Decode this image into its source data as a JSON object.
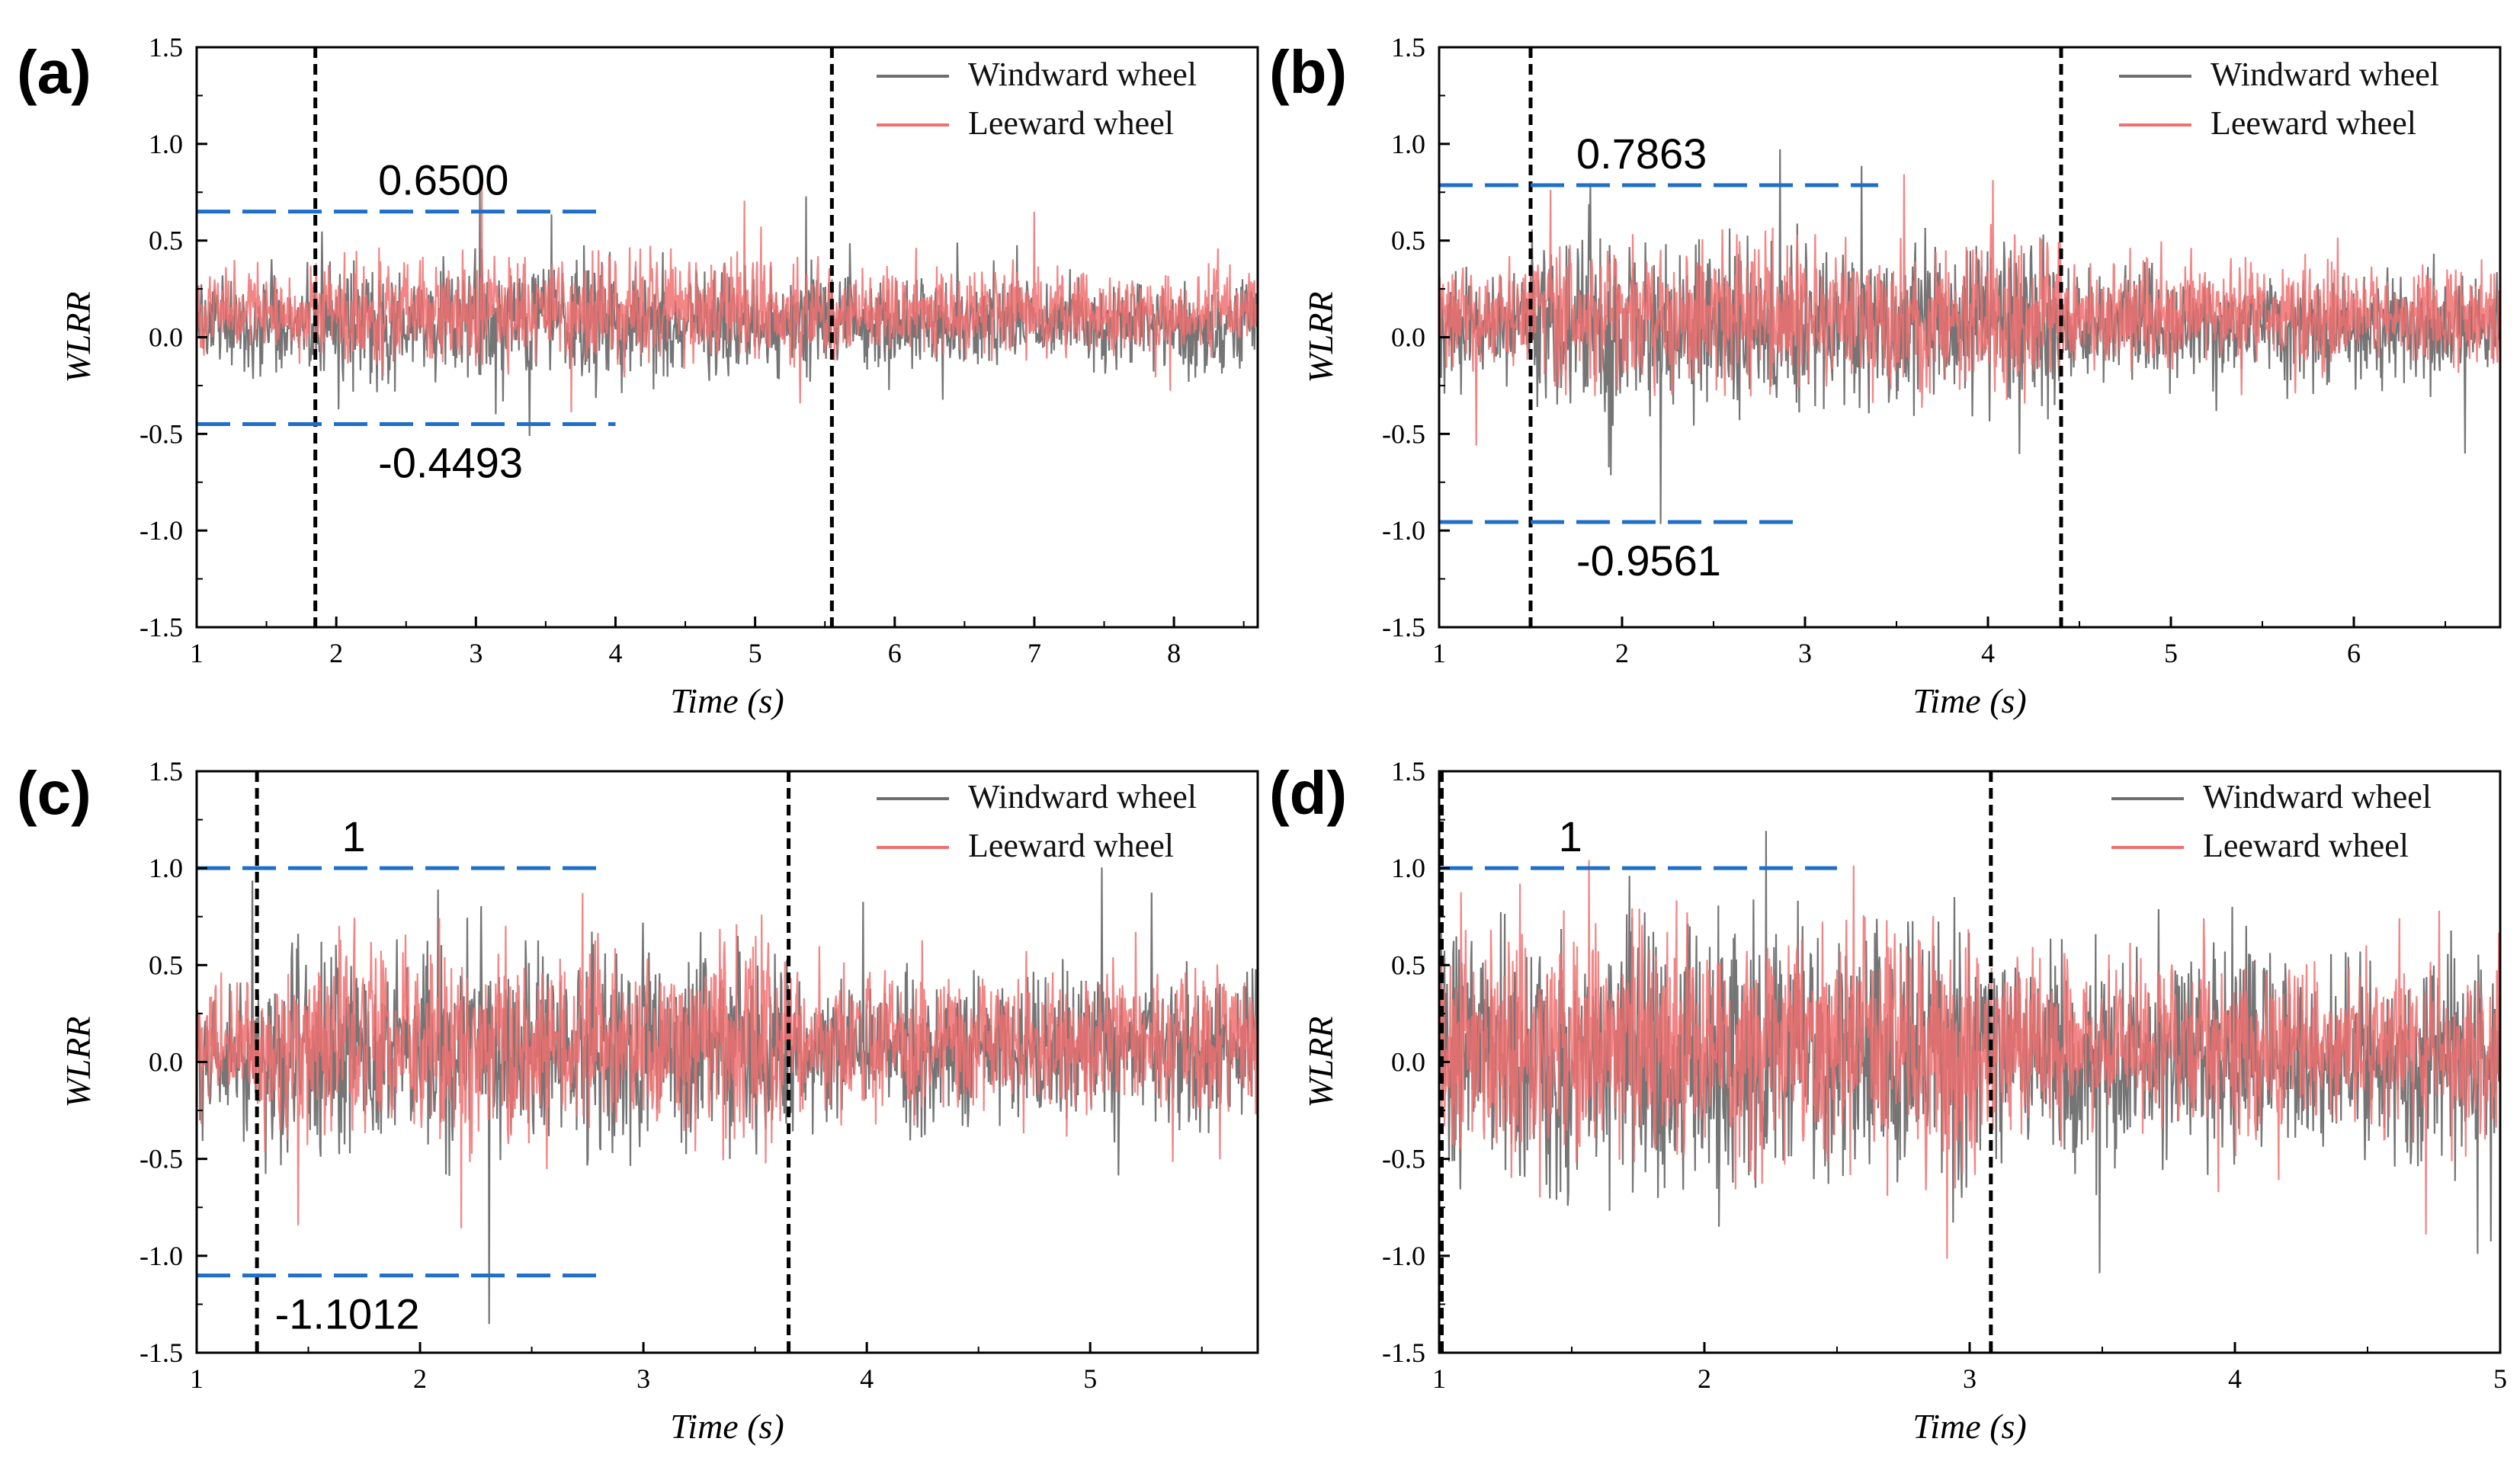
{
  "figure": {
    "colors": {
      "windward": "#6e6e6e",
      "leeward": "#f07070",
      "annotation": "#1f6fc8",
      "event_line": "#000000"
    }
  },
  "chart_data": [
    {
      "id": "a",
      "type": "line",
      "panel_label": "(a)",
      "xlabel": "Time (s)",
      "ylabel": "WLRR",
      "xlim": [
        1,
        8.6
      ],
      "ylim": [
        -1.5,
        1.5
      ],
      "xticks": [
        1,
        2,
        3,
        4,
        5,
        6,
        7,
        8
      ],
      "yticks": [
        -1.5,
        -1.0,
        -0.5,
        0.0,
        0.5,
        1.0,
        1.5
      ],
      "ytick_labels": [
        "-1.5",
        "-1.0",
        "-0.5",
        "0.0",
        "0.5",
        "1.0",
        "1.5"
      ],
      "series": [
        {
          "name": "Windward wheel",
          "color": "#6e6e6e",
          "mean": 0.07,
          "amp": 0.32,
          "burst_amp": 0.42
        },
        {
          "name": "Leeward wheel",
          "color": "#f07070",
          "mean": 0.13,
          "amp": 0.3,
          "burst_amp": 0.4
        }
      ],
      "burst_window": [
        1.85,
        5.55
      ],
      "vlines": [
        1.85,
        5.55
      ],
      "annotations": [
        {
          "text": "0.6500",
          "y": 0.65,
          "x_start": 1.0,
          "x_end": 3.9,
          "label_x": 2.3,
          "label_pos": "above"
        },
        {
          "text": "-0.4493",
          "y": -0.4493,
          "x_start": 1.0,
          "x_end": 4.0,
          "label_x": 2.3,
          "label_pos": "below"
        }
      ]
    },
    {
      "id": "b",
      "type": "line",
      "panel_label": "(b)",
      "xlabel": "Time (s)",
      "ylabel": "WLRR",
      "xlim": [
        1,
        6.8
      ],
      "ylim": [
        -1.5,
        1.5
      ],
      "xticks": [
        1,
        2,
        3,
        4,
        5,
        6
      ],
      "yticks": [
        -1.5,
        -1.0,
        -0.5,
        0.0,
        0.5,
        1.0,
        1.5
      ],
      "ytick_labels": [
        "-1.5",
        "-1.0",
        "-0.5",
        "0.0",
        "0.5",
        "1.0",
        "1.5"
      ],
      "series": [
        {
          "name": "Windward wheel",
          "color": "#6e6e6e",
          "mean": 0.05,
          "amp": 0.4,
          "burst_amp": 0.6
        },
        {
          "name": "Leeward wheel",
          "color": "#f07070",
          "mean": 0.12,
          "amp": 0.38,
          "burst_amp": 0.55
        }
      ],
      "burst_window": [
        1.5,
        4.4
      ],
      "vlines": [
        1.5,
        4.4
      ],
      "annotations": [
        {
          "text": "0.7863",
          "y": 0.7863,
          "x_start": 1.0,
          "x_end": 3.4,
          "label_x": 1.75,
          "label_pos": "above"
        },
        {
          "text": "-0.9561",
          "y": -0.9561,
          "x_start": 1.0,
          "x_end": 3.0,
          "label_x": 1.75,
          "label_pos": "below"
        }
      ]
    },
    {
      "id": "c",
      "type": "line",
      "panel_label": "(c)",
      "xlabel": "Time (s)",
      "ylabel": "WLRR",
      "xlim": [
        1,
        5.75
      ],
      "ylim": [
        -1.5,
        1.5
      ],
      "xticks": [
        1,
        2,
        3,
        4,
        5
      ],
      "yticks": [
        -1.5,
        -1.0,
        -0.5,
        0.0,
        0.5,
        1.0,
        1.5
      ],
      "ytick_labels": [
        "-1.5",
        "-1.0",
        "-0.5",
        "0.0",
        "0.5",
        "1.0",
        "1.5"
      ],
      "series": [
        {
          "name": "Windward wheel",
          "color": "#6e6e6e",
          "mean": 0.05,
          "amp": 0.55,
          "burst_amp": 0.75
        },
        {
          "name": "Leeward wheel",
          "color": "#f07070",
          "mean": 0.1,
          "amp": 0.5,
          "burst_amp": 0.7
        }
      ],
      "burst_window": [
        1.27,
        3.65
      ],
      "vlines": [
        1.27,
        3.65
      ],
      "annotations": [
        {
          "text": "1",
          "y": 1.0,
          "x_start": 1.0,
          "x_end": 2.8,
          "label_x": 1.65,
          "label_pos": "above"
        },
        {
          "text": "-1.1012",
          "y": -1.1012,
          "x_start": 1.0,
          "x_end": 2.8,
          "label_x": 1.35,
          "label_pos": "below"
        }
      ]
    },
    {
      "id": "d",
      "type": "line",
      "panel_label": "(d)",
      "xlabel": "Time (s)",
      "ylabel": "WLRR",
      "xlim": [
        1,
        5
      ],
      "ylim": [
        -1.5,
        1.5
      ],
      "xticks": [
        1,
        2,
        3,
        4,
        5
      ],
      "yticks": [
        -1.5,
        -1.0,
        -0.5,
        0.0,
        0.5,
        1.0,
        1.5
      ],
      "ytick_labels": [
        "-1.5",
        "-1.0",
        "-0.5",
        "0.0",
        "0.5",
        "1.0",
        "1.5"
      ],
      "series": [
        {
          "name": "Windward wheel",
          "color": "#6e6e6e",
          "mean": 0.02,
          "amp": 0.7,
          "burst_amp": 0.95
        },
        {
          "name": "Leeward wheel",
          "color": "#f07070",
          "mean": 0.08,
          "amp": 0.62,
          "burst_amp": 0.9
        }
      ],
      "burst_window": [
        1.0,
        3.08
      ],
      "vlines": [
        1.01,
        3.08
      ],
      "annotations": [
        {
          "text": "1",
          "y": 1.0,
          "x_start": 1.0,
          "x_end": 2.5,
          "label_x": 1.45,
          "label_pos": "above"
        }
      ]
    }
  ]
}
